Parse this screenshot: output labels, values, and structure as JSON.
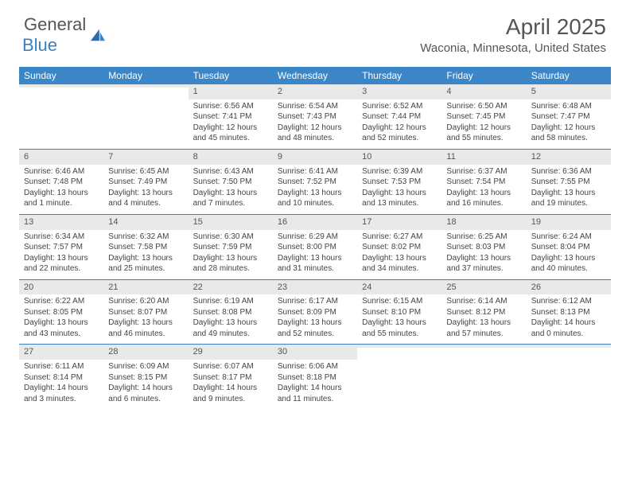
{
  "logo": {
    "general": "General",
    "blue": "Blue"
  },
  "title": "April 2025",
  "location": "Waconia, Minnesota, United States",
  "colors": {
    "header_bg": "#3b86c7",
    "header_text": "#ffffff",
    "daynum_bg": "#e9e9e9",
    "rule": "#3b7fc4",
    "body_text": "#444444",
    "title_text": "#555555",
    "logo_gray": "#555555",
    "logo_blue": "#3b7fc4",
    "background": "#ffffff"
  },
  "day_names": [
    "Sunday",
    "Monday",
    "Tuesday",
    "Wednesday",
    "Thursday",
    "Friday",
    "Saturday"
  ],
  "weeks": [
    [
      {
        "n": "",
        "sr": "",
        "ss": "",
        "dl": ""
      },
      {
        "n": "",
        "sr": "",
        "ss": "",
        "dl": ""
      },
      {
        "n": "1",
        "sr": "Sunrise: 6:56 AM",
        "ss": "Sunset: 7:41 PM",
        "dl": "Daylight: 12 hours and 45 minutes."
      },
      {
        "n": "2",
        "sr": "Sunrise: 6:54 AM",
        "ss": "Sunset: 7:43 PM",
        "dl": "Daylight: 12 hours and 48 minutes."
      },
      {
        "n": "3",
        "sr": "Sunrise: 6:52 AM",
        "ss": "Sunset: 7:44 PM",
        "dl": "Daylight: 12 hours and 52 minutes."
      },
      {
        "n": "4",
        "sr": "Sunrise: 6:50 AM",
        "ss": "Sunset: 7:45 PM",
        "dl": "Daylight: 12 hours and 55 minutes."
      },
      {
        "n": "5",
        "sr": "Sunrise: 6:48 AM",
        "ss": "Sunset: 7:47 PM",
        "dl": "Daylight: 12 hours and 58 minutes."
      }
    ],
    [
      {
        "n": "6",
        "sr": "Sunrise: 6:46 AM",
        "ss": "Sunset: 7:48 PM",
        "dl": "Daylight: 13 hours and 1 minute."
      },
      {
        "n": "7",
        "sr": "Sunrise: 6:45 AM",
        "ss": "Sunset: 7:49 PM",
        "dl": "Daylight: 13 hours and 4 minutes."
      },
      {
        "n": "8",
        "sr": "Sunrise: 6:43 AM",
        "ss": "Sunset: 7:50 PM",
        "dl": "Daylight: 13 hours and 7 minutes."
      },
      {
        "n": "9",
        "sr": "Sunrise: 6:41 AM",
        "ss": "Sunset: 7:52 PM",
        "dl": "Daylight: 13 hours and 10 minutes."
      },
      {
        "n": "10",
        "sr": "Sunrise: 6:39 AM",
        "ss": "Sunset: 7:53 PM",
        "dl": "Daylight: 13 hours and 13 minutes."
      },
      {
        "n": "11",
        "sr": "Sunrise: 6:37 AM",
        "ss": "Sunset: 7:54 PM",
        "dl": "Daylight: 13 hours and 16 minutes."
      },
      {
        "n": "12",
        "sr": "Sunrise: 6:36 AM",
        "ss": "Sunset: 7:55 PM",
        "dl": "Daylight: 13 hours and 19 minutes."
      }
    ],
    [
      {
        "n": "13",
        "sr": "Sunrise: 6:34 AM",
        "ss": "Sunset: 7:57 PM",
        "dl": "Daylight: 13 hours and 22 minutes."
      },
      {
        "n": "14",
        "sr": "Sunrise: 6:32 AM",
        "ss": "Sunset: 7:58 PM",
        "dl": "Daylight: 13 hours and 25 minutes."
      },
      {
        "n": "15",
        "sr": "Sunrise: 6:30 AM",
        "ss": "Sunset: 7:59 PM",
        "dl": "Daylight: 13 hours and 28 minutes."
      },
      {
        "n": "16",
        "sr": "Sunrise: 6:29 AM",
        "ss": "Sunset: 8:00 PM",
        "dl": "Daylight: 13 hours and 31 minutes."
      },
      {
        "n": "17",
        "sr": "Sunrise: 6:27 AM",
        "ss": "Sunset: 8:02 PM",
        "dl": "Daylight: 13 hours and 34 minutes."
      },
      {
        "n": "18",
        "sr": "Sunrise: 6:25 AM",
        "ss": "Sunset: 8:03 PM",
        "dl": "Daylight: 13 hours and 37 minutes."
      },
      {
        "n": "19",
        "sr": "Sunrise: 6:24 AM",
        "ss": "Sunset: 8:04 PM",
        "dl": "Daylight: 13 hours and 40 minutes."
      }
    ],
    [
      {
        "n": "20",
        "sr": "Sunrise: 6:22 AM",
        "ss": "Sunset: 8:05 PM",
        "dl": "Daylight: 13 hours and 43 minutes."
      },
      {
        "n": "21",
        "sr": "Sunrise: 6:20 AM",
        "ss": "Sunset: 8:07 PM",
        "dl": "Daylight: 13 hours and 46 minutes."
      },
      {
        "n": "22",
        "sr": "Sunrise: 6:19 AM",
        "ss": "Sunset: 8:08 PM",
        "dl": "Daylight: 13 hours and 49 minutes."
      },
      {
        "n": "23",
        "sr": "Sunrise: 6:17 AM",
        "ss": "Sunset: 8:09 PM",
        "dl": "Daylight: 13 hours and 52 minutes."
      },
      {
        "n": "24",
        "sr": "Sunrise: 6:15 AM",
        "ss": "Sunset: 8:10 PM",
        "dl": "Daylight: 13 hours and 55 minutes."
      },
      {
        "n": "25",
        "sr": "Sunrise: 6:14 AM",
        "ss": "Sunset: 8:12 PM",
        "dl": "Daylight: 13 hours and 57 minutes."
      },
      {
        "n": "26",
        "sr": "Sunrise: 6:12 AM",
        "ss": "Sunset: 8:13 PM",
        "dl": "Daylight: 14 hours and 0 minutes."
      }
    ],
    [
      {
        "n": "27",
        "sr": "Sunrise: 6:11 AM",
        "ss": "Sunset: 8:14 PM",
        "dl": "Daylight: 14 hours and 3 minutes."
      },
      {
        "n": "28",
        "sr": "Sunrise: 6:09 AM",
        "ss": "Sunset: 8:15 PM",
        "dl": "Daylight: 14 hours and 6 minutes."
      },
      {
        "n": "29",
        "sr": "Sunrise: 6:07 AM",
        "ss": "Sunset: 8:17 PM",
        "dl": "Daylight: 14 hours and 9 minutes."
      },
      {
        "n": "30",
        "sr": "Sunrise: 6:06 AM",
        "ss": "Sunset: 8:18 PM",
        "dl": "Daylight: 14 hours and 11 minutes."
      },
      {
        "n": "",
        "sr": "",
        "ss": "",
        "dl": ""
      },
      {
        "n": "",
        "sr": "",
        "ss": "",
        "dl": ""
      },
      {
        "n": "",
        "sr": "",
        "ss": "",
        "dl": ""
      }
    ]
  ]
}
